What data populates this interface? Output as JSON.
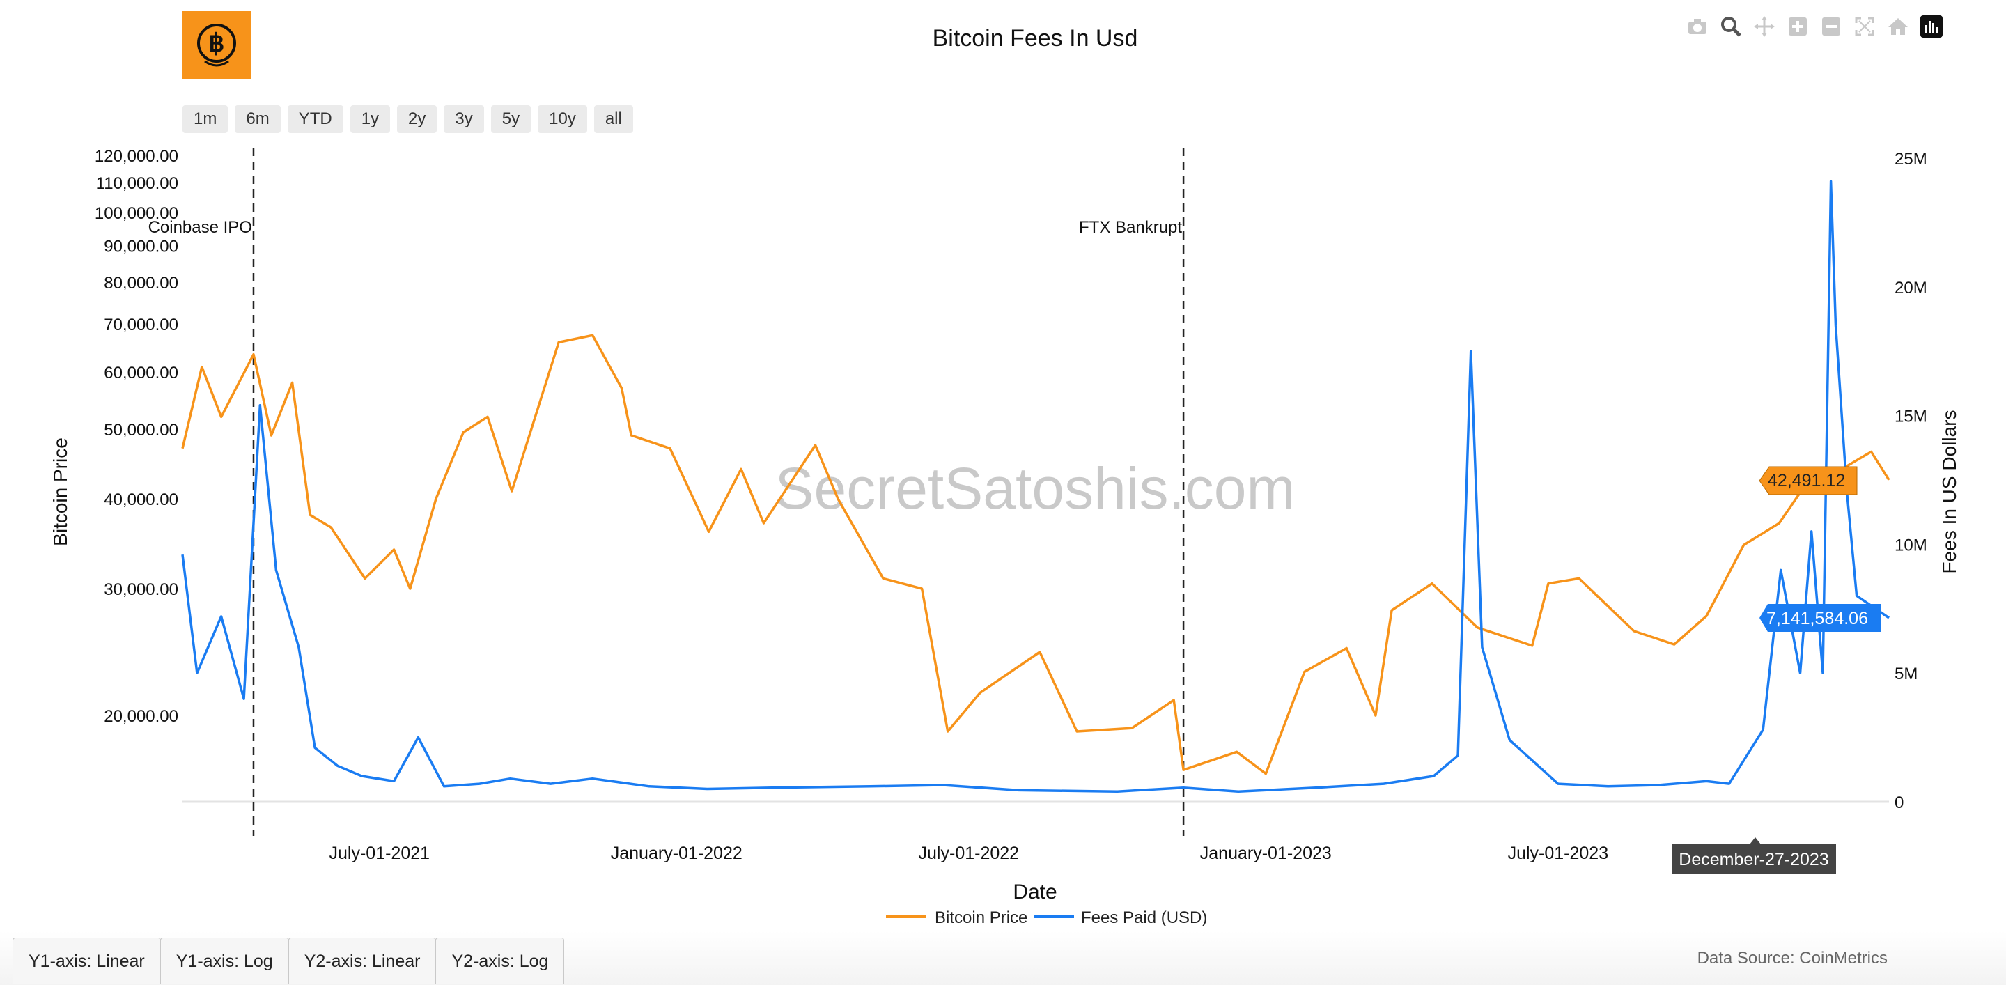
{
  "title": "Bitcoin Fees In Usd",
  "range_buttons": [
    "1m",
    "6m",
    "YTD",
    "1y",
    "2y",
    "3y",
    "5y",
    "10y",
    "all"
  ],
  "modebar_icons": [
    "camera-icon",
    "zoom-icon",
    "pan-icon",
    "zoom-in-icon",
    "zoom-out-icon",
    "autoscale-icon",
    "home-icon",
    "chart-logo-icon"
  ],
  "axis_tabs": [
    "Y1-axis: Linear",
    "Y1-axis: Log",
    "Y2-axis: Linear",
    "Y2-axis: Log"
  ],
  "data_source": "Data Source: CoinMetrics",
  "watermark": "SecretSatoshis.com",
  "hover_date": "December-27-2023",
  "colors": {
    "price": "#f7931a",
    "fees": "#1a7cf2",
    "logo": "#f7931a"
  },
  "chart_data": {
    "type": "line",
    "title": "Bitcoin Fees In Usd",
    "xlabel": "Date",
    "ylabel_left": "Bitcoin Price",
    "ylabel_right": "Fees In US Dollars",
    "x_ticks": [
      "July-01-2021",
      "January-01-2022",
      "July-01-2022",
      "January-01-2023",
      "July-01-2023"
    ],
    "x_range": [
      "2021-03-01",
      "2024-01-22"
    ],
    "y_left_scale": "log",
    "y_left_ticks": [
      "20,000.00",
      "30,000.00",
      "40,000.00",
      "50,000.00",
      "60,000.00",
      "70,000.00",
      "80,000.00",
      "90,000.00",
      "100,000.00",
      "110,000.00",
      "120,000.00"
    ],
    "y_right_ticks": [
      "0",
      "5M",
      "10M",
      "15M",
      "20M",
      "25M"
    ],
    "y_right_range": [
      0,
      25000000
    ],
    "legend": "bottom-center",
    "annotations": [
      {
        "date": "2021-04-14",
        "label": "Coinbase IPO"
      },
      {
        "date": "2022-11-11",
        "label": "FTX Bankrupt"
      }
    ],
    "last_values": {
      "Bitcoin Price": "42,491.12",
      "Fees Paid (USD)": "7,141,584.06"
    },
    "series": [
      {
        "name": "Bitcoin Price",
        "axis": "left",
        "points": [
          [
            "2021-03-01",
            47000
          ],
          [
            "2021-03-13",
            61000
          ],
          [
            "2021-03-25",
            52000
          ],
          [
            "2021-04-14",
            63500
          ],
          [
            "2021-04-25",
            49000
          ],
          [
            "2021-05-08",
            58000
          ],
          [
            "2021-05-19",
            38000
          ],
          [
            "2021-06-01",
            36500
          ],
          [
            "2021-06-22",
            31000
          ],
          [
            "2021-07-10",
            34000
          ],
          [
            "2021-07-20",
            30000
          ],
          [
            "2021-08-05",
            40000
          ],
          [
            "2021-08-22",
            49500
          ],
          [
            "2021-09-06",
            52000
          ],
          [
            "2021-09-21",
            41000
          ],
          [
            "2021-10-10",
            56000
          ],
          [
            "2021-10-20",
            66000
          ],
          [
            "2021-11-10",
            67500
          ],
          [
            "2021-11-28",
            57000
          ],
          [
            "2021-12-04",
            49000
          ],
          [
            "2021-12-28",
            47000
          ],
          [
            "2022-01-21",
            36000
          ],
          [
            "2022-02-10",
            44000
          ],
          [
            "2022-02-24",
            37000
          ],
          [
            "2022-03-28",
            47500
          ],
          [
            "2022-04-11",
            40000
          ],
          [
            "2022-05-09",
            31000
          ],
          [
            "2022-06-02",
            30000
          ],
          [
            "2022-06-18",
            19000
          ],
          [
            "2022-07-08",
            21500
          ],
          [
            "2022-08-14",
            24500
          ],
          [
            "2022-09-06",
            19000
          ],
          [
            "2022-10-10",
            19200
          ],
          [
            "2022-11-05",
            21000
          ],
          [
            "2022-11-11",
            16800
          ],
          [
            "2022-12-14",
            17800
          ],
          [
            "2023-01-01",
            16600
          ],
          [
            "2023-01-25",
            23000
          ],
          [
            "2023-02-20",
            24800
          ],
          [
            "2023-03-10",
            20000
          ],
          [
            "2023-03-20",
            28000
          ],
          [
            "2023-04-14",
            30500
          ],
          [
            "2023-05-12",
            26500
          ],
          [
            "2023-06-15",
            25000
          ],
          [
            "2023-06-25",
            30500
          ],
          [
            "2023-07-14",
            31000
          ],
          [
            "2023-08-17",
            26200
          ],
          [
            "2023-09-11",
            25100
          ],
          [
            "2023-10-01",
            27500
          ],
          [
            "2023-10-24",
            34500
          ],
          [
            "2023-11-15",
            37000
          ],
          [
            "2023-12-08",
            44000
          ],
          [
            "2023-12-20",
            43500
          ],
          [
            "2024-01-11",
            46500
          ],
          [
            "2024-01-22",
            42491.12
          ]
        ]
      },
      {
        "name": "Fees Paid (USD)",
        "axis": "right",
        "points": [
          [
            "2021-03-01",
            9600000
          ],
          [
            "2021-03-10",
            5000000
          ],
          [
            "2021-03-25",
            7200000
          ],
          [
            "2021-04-08",
            4000000
          ],
          [
            "2021-04-18",
            15400000
          ],
          [
            "2021-04-28",
            9000000
          ],
          [
            "2021-05-12",
            6000000
          ],
          [
            "2021-05-22",
            2100000
          ],
          [
            "2021-06-05",
            1400000
          ],
          [
            "2021-06-20",
            1000000
          ],
          [
            "2021-07-10",
            800000
          ],
          [
            "2021-07-25",
            2500000
          ],
          [
            "2021-08-10",
            600000
          ],
          [
            "2021-09-01",
            700000
          ],
          [
            "2021-09-20",
            900000
          ],
          [
            "2021-10-15",
            700000
          ],
          [
            "2021-11-10",
            900000
          ],
          [
            "2021-12-15",
            600000
          ],
          [
            "2022-01-20",
            500000
          ],
          [
            "2022-03-01",
            550000
          ],
          [
            "2022-05-01",
            600000
          ],
          [
            "2022-06-15",
            650000
          ],
          [
            "2022-08-01",
            450000
          ],
          [
            "2022-10-01",
            400000
          ],
          [
            "2022-11-11",
            550000
          ],
          [
            "2022-12-15",
            400000
          ],
          [
            "2023-02-01",
            550000
          ],
          [
            "2023-03-15",
            700000
          ],
          [
            "2023-04-15",
            1000000
          ],
          [
            "2023-04-30",
            1800000
          ],
          [
            "2023-05-08",
            17500000
          ],
          [
            "2023-05-15",
            6000000
          ],
          [
            "2023-06-01",
            2400000
          ],
          [
            "2023-07-01",
            700000
          ],
          [
            "2023-08-01",
            600000
          ],
          [
            "2023-09-01",
            650000
          ],
          [
            "2023-10-01",
            800000
          ],
          [
            "2023-10-15",
            700000
          ],
          [
            "2023-11-05",
            2800000
          ],
          [
            "2023-11-16",
            9000000
          ],
          [
            "2023-11-28",
            5000000
          ],
          [
            "2023-12-05",
            10500000
          ],
          [
            "2023-12-12",
            5000000
          ],
          [
            "2023-12-17",
            24100000
          ],
          [
            "2023-12-20",
            18500000
          ],
          [
            "2023-12-27",
            12000000
          ],
          [
            "2024-01-02",
            8000000
          ],
          [
            "2024-01-22",
            7141584.06
          ]
        ]
      }
    ]
  }
}
